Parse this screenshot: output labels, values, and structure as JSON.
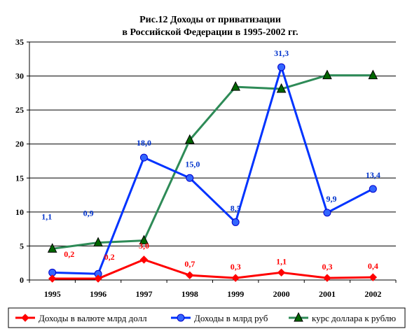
{
  "chart_data": {
    "type": "line",
    "title_lines": [
      "Рис.12 Доходы от приватизации",
      "в Российской Федерации в 1995-2002 гг."
    ],
    "categories": [
      "1995",
      "1996",
      "1997",
      "1998",
      "1999",
      "2000",
      "2001",
      "2002"
    ],
    "ylim": [
      0,
      35
    ],
    "yticks": [
      "0",
      "5",
      "10",
      "15",
      "20",
      "25",
      "30",
      "35"
    ],
    "grid": true,
    "legend_position": "bottom",
    "series": [
      {
        "name": "Доходы в валюте млрд долл",
        "color": "#ff0000",
        "marker": "diamond",
        "values": [
          0.2,
          0.2,
          3.0,
          0.7,
          0.3,
          1.1,
          0.3,
          0.4
        ],
        "labels": [
          "0,2",
          "0,2",
          "3,0",
          "0,7",
          "0,3",
          "1,1",
          "0,3",
          "0,4"
        ]
      },
      {
        "name": "Доходы в млрд руб",
        "color": "#0033ff",
        "marker": "circle",
        "values": [
          1.1,
          0.9,
          18.0,
          15.0,
          8.5,
          31.3,
          9.9,
          13.4
        ],
        "labels": [
          "1,1",
          "0,9",
          "18,0",
          "15,0",
          "8,5",
          "31,3",
          "9,9",
          "13,4"
        ]
      },
      {
        "name": "курс доллара к рублю",
        "color": "#2e8b57",
        "marker": "triangle",
        "values": [
          4.6,
          5.5,
          5.8,
          20.6,
          28.4,
          28.1,
          30.1,
          30.1
        ],
        "labels": []
      }
    ]
  }
}
